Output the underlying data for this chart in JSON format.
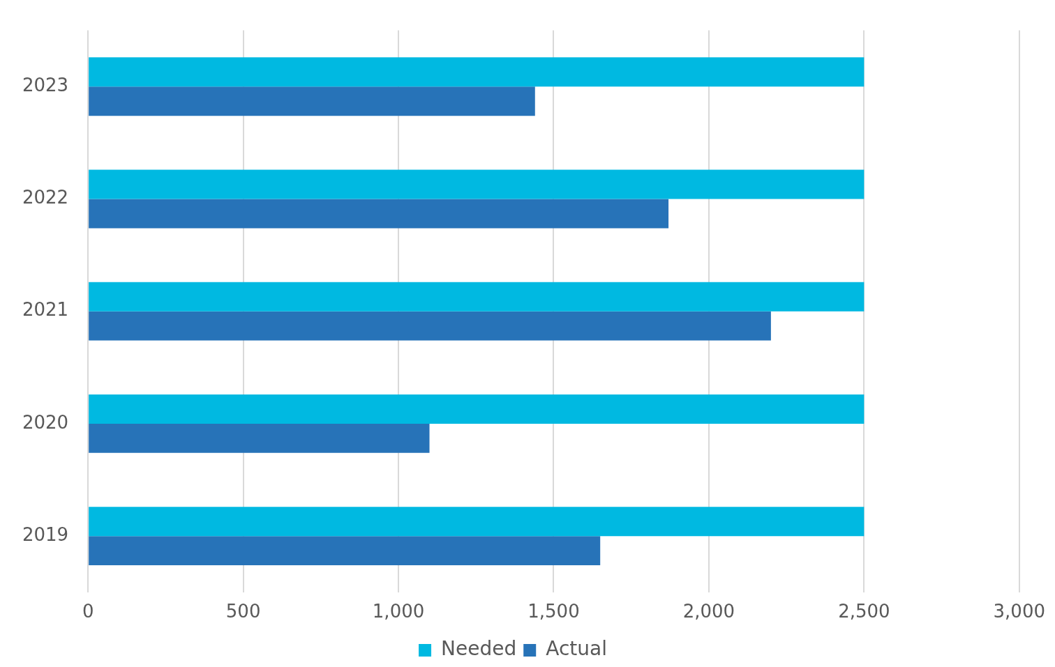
{
  "chart_data": {
    "type": "bar",
    "orientation": "horizontal",
    "categories": [
      "2023",
      "2022",
      "2021",
      "2020",
      "2019"
    ],
    "series": [
      {
        "name": "Needed",
        "color": "#00b9e1",
        "values": [
          2500,
          2500,
          2500,
          2500,
          2500
        ]
      },
      {
        "name": "Actual",
        "color": "#2773b8",
        "values": [
          1440,
          1870,
          2200,
          1100,
          1650
        ]
      }
    ],
    "xlim": [
      0,
      3000
    ],
    "xticks": [
      0,
      500,
      {
        "value": 1000,
        "label": "1,000"
      },
      {
        "value": 1500,
        "label": "1,500"
      },
      {
        "value": 2000,
        "label": "2,000"
      },
      {
        "value": 2500,
        "label": "2,500"
      },
      {
        "value": 3000,
        "label": "3,000"
      }
    ],
    "grid": "x",
    "legend": "bottom"
  }
}
